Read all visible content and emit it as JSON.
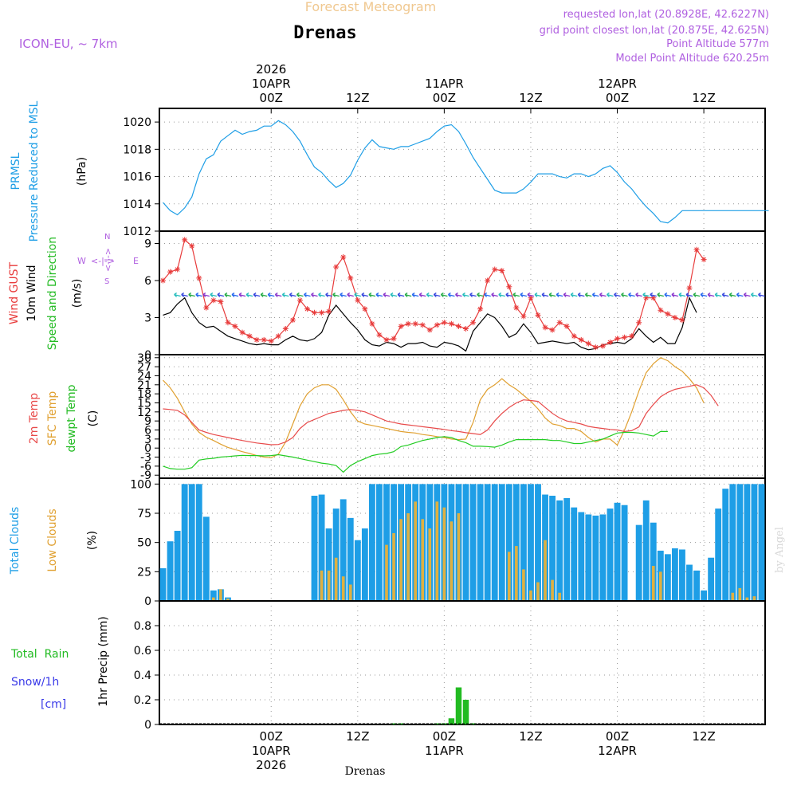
{
  "header": {
    "subtitle": "Forecast Meteogram",
    "title": "Drenas",
    "model": "ICON-EU, ~ 7km",
    "requested": "requested lon,lat (20.8928E, 42.6227N)",
    "grid_point": "grid point closest lon,lat (20.875E, 42.625N)",
    "point_altitude": "Point Altitude 577m",
    "model_altitude": "Model Point Altitude 620.25m"
  },
  "footer": {
    "location": "Drenas",
    "watermark": "by Angel"
  },
  "time_axis": {
    "top_labels": [
      {
        "i": 15,
        "lines": [
          "2026",
          "10APR",
          "00Z"
        ]
      },
      {
        "i": 27,
        "lines": [
          "12Z"
        ]
      },
      {
        "i": 39,
        "lines": [
          "11APR",
          "00Z"
        ]
      },
      {
        "i": 51,
        "lines": [
          "12Z"
        ]
      },
      {
        "i": 63,
        "lines": [
          "12APR",
          "00Z"
        ]
      },
      {
        "i": 75,
        "lines": [
          "12Z"
        ]
      }
    ],
    "bottom_labels": [
      {
        "i": 15,
        "lines": [
          "00Z",
          "10APR",
          "2026"
        ]
      },
      {
        "i": 27,
        "lines": [
          "12Z"
        ]
      },
      {
        "i": 39,
        "lines": [
          "00Z",
          "11APR"
        ]
      },
      {
        "i": 51,
        "lines": [
          "12Z"
        ]
      },
      {
        "i": 63,
        "lines": [
          "00Z",
          "12APR"
        ]
      },
      {
        "i": 75,
        "lines": [
          "12Z"
        ]
      }
    ]
  },
  "panels": {
    "pressure": {
      "label_lines": [
        "PRMSL",
        "Pressure Reduced to MSL"
      ],
      "unit": "(hPa)",
      "ticks": [
        1012,
        1014,
        1016,
        1018,
        1020
      ]
    },
    "wind": {
      "label_gust": "Wind GUST",
      "label_wind": "10m Wind",
      "label_dir": "Speed and Direction",
      "unit": "(m/s)",
      "ticks": [
        0,
        3,
        6,
        9
      ],
      "compass": {
        "w": "W",
        "e": "E",
        "n": "N",
        "s": "S",
        "arrows": "<-|->"
      }
    },
    "temp": {
      "label_t2m": "2m Temp",
      "label_sfc": "SFC Temp",
      "label_dew": "dewpt Temp",
      "unit": "(C)",
      "ticks": [
        -9,
        -6,
        -3,
        0,
        3,
        6,
        9,
        12,
        15,
        18,
        21,
        24,
        27,
        30
      ]
    },
    "clouds": {
      "label_total": "Total Clouds",
      "label_low": "Low Clouds",
      "unit": "(%)",
      "ticks": [
        0,
        25,
        50,
        75,
        100
      ]
    },
    "precip": {
      "label_rain": "Total  Rain",
      "label_snow": "Snow/1h",
      "label_snow_unit": "[cm]",
      "unit": "1hr Precip (mm)",
      "ticks": [
        "0",
        "0.2",
        "0.4",
        "0.6",
        "0.8"
      ]
    }
  },
  "colors": {
    "pressure": "#1e9ee6",
    "gust": "#e83b3b",
    "wind": "#000000",
    "t2m": "#e84a4a",
    "sfc": "#e0a030",
    "dew": "#22cc22",
    "total_clouds": "#1e9ee6",
    "low_clouds": "#e0b040",
    "rain": "#22bb22",
    "snow": "#3a3ae8",
    "title_purple": "#b060e0",
    "subtitle": "#f0c890",
    "frame": "#000000",
    "grid": "#999999"
  },
  "chart_data": {
    "type": "meteogram",
    "title": "Forecast Meteogram - Drenas",
    "time_step_hours": 1,
    "start": "2026-04-09T09Z",
    "x_index_range": [
      0,
      84
    ],
    "pressure_hpa": {
      "ylim": [
        1012,
        1021
      ],
      "x": [
        0,
        1,
        2,
        3,
        4,
        5,
        6,
        7,
        8,
        9,
        10,
        11,
        12,
        13,
        14,
        15,
        16,
        17,
        18,
        19,
        20,
        21,
        22,
        23,
        24,
        25,
        26,
        27,
        28,
        29,
        30,
        31,
        32,
        33,
        34,
        35,
        36,
        37,
        38,
        39,
        40,
        41,
        42,
        43,
        44,
        45,
        46,
        47,
        48,
        49,
        50,
        51,
        52,
        53,
        54,
        55,
        56,
        57,
        58,
        59,
        60,
        61,
        62,
        63,
        64,
        65,
        66,
        67,
        68,
        69,
        70,
        71,
        72,
        73,
        74,
        75,
        76,
        77,
        78,
        79,
        80,
        81,
        82,
        83,
        84
      ],
      "values": [
        1014.1,
        1013.5,
        1013.2,
        1013.7,
        1014.5,
        1016.2,
        1017.3,
        1017.6,
        1018.6,
        1019.0,
        1019.4,
        1019.1,
        1019.3,
        1019.4,
        1019.7,
        1019.7,
        1020.1,
        1019.8,
        1019.3,
        1018.6,
        1017.6,
        1016.7,
        1016.3,
        1015.7,
        1015.2,
        1015.5,
        1016.1,
        1017.2,
        1018.1,
        1018.7,
        1018.2,
        1018.1,
        1018.0,
        1018.2,
        1018.2,
        1018.4,
        1018.6,
        1018.8,
        1019.3,
        1019.7,
        1019.8,
        1019.3,
        1018.4,
        1017.4,
        1016.6,
        1015.8,
        1015.0,
        1014.8,
        1014.8,
        1014.8,
        1015.1,
        1015.6,
        1016.2,
        1016.2,
        1016.2,
        1016.0,
        1015.9,
        1016.2,
        1016.2,
        1016.0,
        1016.2,
        1016.6,
        1016.8,
        1016.3,
        1015.6,
        1015.1,
        1014.4,
        1013.8,
        1013.3,
        1012.7,
        1012.6,
        1013.0,
        1013.5,
        1013.5,
        1013.5,
        1013.5,
        1013.5,
        1013.5,
        1013.5,
        1013.5,
        1013.5,
        1013.5,
        1013.5,
        1013.5,
        1013.5
      ]
    },
    "wind_gust_ms": {
      "ylim": [
        0,
        10
      ],
      "values": [
        6.0,
        6.7,
        6.9,
        9.3,
        8.8,
        6.2,
        3.8,
        4.4,
        4.3,
        2.6,
        2.3,
        1.8,
        1.5,
        1.2,
        1.2,
        1.1,
        1.5,
        2.1,
        2.8,
        4.4,
        3.7,
        3.4,
        3.4,
        3.5,
        7.1,
        7.9,
        6.2,
        4.4,
        3.7,
        2.5,
        1.6,
        1.2,
        1.3,
        2.3,
        2.5,
        2.5,
        2.4,
        2.0,
        2.4,
        2.6,
        2.5,
        2.3,
        2.1,
        2.6,
        3.7,
        6.0,
        6.9,
        6.8,
        5.5,
        3.8,
        3.1,
        4.6,
        3.2,
        2.2,
        2.0,
        2.6,
        2.3,
        1.5,
        1.2,
        0.9,
        0.6,
        0.7,
        1.0,
        1.3,
        1.4,
        1.5,
        2.6,
        4.6,
        4.6,
        3.6,
        3.3,
        3.0,
        2.8,
        5.4,
        8.5,
        7.7
      ]
    },
    "wind_speed_ms": {
      "values": [
        3.2,
        3.4,
        4.1,
        4.6,
        3.4,
        2.6,
        2.2,
        2.3,
        1.9,
        1.5,
        1.3,
        1.1,
        0.9,
        0.8,
        0.9,
        0.8,
        0.8,
        1.2,
        1.5,
        1.2,
        1.1,
        1.3,
        1.8,
        3.2,
        4.0,
        3.3,
        2.6,
        2.0,
        1.2,
        0.8,
        0.7,
        1.0,
        0.9,
        0.6,
        0.9,
        0.9,
        1.0,
        0.7,
        0.6,
        1.0,
        0.9,
        0.7,
        0.3,
        1.9,
        2.6,
        3.3,
        3.0,
        2.3,
        1.4,
        1.7,
        2.5,
        1.8,
        0.9,
        1.0,
        1.1,
        1.0,
        0.9,
        1.0,
        0.6,
        0.4,
        0.5,
        0.8,
        0.9,
        1.0,
        0.9,
        1.3,
        2.1,
        1.5,
        1.0,
        1.4,
        0.9,
        0.9,
        2.2,
        4.6,
        3.4
      ]
    },
    "temp_2m_c": {
      "ylim": [
        -10,
        31
      ],
      "values": [
        13.0,
        12.8,
        12.5,
        11.0,
        8.5,
        6.0,
        5.2,
        4.5,
        4.0,
        3.5,
        3.0,
        2.5,
        2.1,
        1.7,
        1.4,
        1.1,
        1.2,
        2.0,
        3.5,
        6.5,
        8.5,
        9.5,
        10.5,
        11.5,
        12.0,
        12.5,
        12.8,
        12.5,
        12.0,
        11.0,
        10.0,
        9.0,
        8.5,
        8.0,
        7.7,
        7.4,
        7.1,
        6.8,
        6.5,
        6.2,
        5.8,
        5.5,
        5.1,
        4.8,
        4.5,
        6.0,
        9.0,
        11.5,
        13.5,
        15.0,
        16.0,
        15.8,
        15.5,
        13.5,
        11.5,
        10.0,
        9.0,
        8.5,
        8.0,
        7.2,
        6.8,
        6.5,
        6.2,
        6.0,
        5.5,
        5.8,
        7.0,
        11.5,
        14.5,
        17.0,
        18.5,
        19.5,
        20.0,
        20.5,
        21.0,
        20.0,
        17.5,
        14.0
      ]
    },
    "temp_sfc_c": {
      "values": [
        22.5,
        20.0,
        16.5,
        12.0,
        8.0,
        5.2,
        3.6,
        2.5,
        1.3,
        0.2,
        -0.5,
        -1.2,
        -1.8,
        -2.5,
        -3.0,
        -3.2,
        -2.0,
        2.0,
        8.0,
        14.0,
        18.0,
        20.0,
        21.0,
        21.0,
        19.5,
        16.0,
        12.0,
        9.0,
        8.0,
        7.5,
        7.0,
        6.5,
        6.0,
        5.5,
        5.2,
        5.0,
        4.5,
        4.2,
        3.8,
        3.5,
        3.0,
        2.8,
        3.0,
        8.5,
        16.0,
        19.5,
        21.0,
        23.0,
        21.0,
        19.5,
        17.5,
        15.5,
        13.0,
        10.0,
        8.0,
        7.5,
        6.5,
        6.5,
        5.5,
        3.5,
        2.0,
        3.0,
        3.0,
        1.0,
        6.0,
        12.0,
        19.0,
        25.0,
        28.0,
        30.0,
        29.0,
        27.0,
        25.5,
        23.0,
        20.0,
        15.0
      ]
    },
    "temp_dew_c": {
      "values": [
        -6.0,
        -6.8,
        -7.0,
        -7.0,
        -6.5,
        -4.0,
        -3.6,
        -3.4,
        -3.0,
        -2.8,
        -2.6,
        -2.4,
        -2.5,
        -2.5,
        -2.6,
        -2.5,
        -2.2,
        -2.6,
        -3.0,
        -3.5,
        -4.0,
        -4.5,
        -5.0,
        -5.3,
        -5.8,
        -8.0,
        -5.8,
        -4.5,
        -3.5,
        -2.5,
        -2.0,
        -1.8,
        -1.2,
        0.5,
        1.0,
        1.8,
        2.5,
        3.0,
        3.5,
        3.8,
        3.5,
        2.5,
        1.8,
        0.6,
        0.6,
        0.5,
        0.3,
        1.0,
        2.0,
        2.8,
        2.8,
        2.8,
        2.8,
        2.8,
        2.5,
        2.5,
        2.0,
        1.5,
        1.5,
        2.0,
        2.5,
        3.0,
        4.0,
        5.0,
        5.2,
        5.2,
        5.0,
        4.5,
        4.0,
        5.5,
        5.5
      ]
    },
    "total_clouds_pct": {
      "ylim": [
        0,
        105
      ],
      "values": [
        28,
        51,
        60,
        100,
        100,
        100,
        72,
        9,
        10,
        3,
        0,
        0,
        0,
        0,
        0,
        0,
        0,
        0,
        0,
        0,
        0,
        90,
        91,
        62,
        79,
        87,
        71,
        52,
        62,
        100,
        100,
        100,
        100,
        100,
        100,
        100,
        100,
        100,
        100,
        100,
        100,
        100,
        100,
        100,
        100,
        100,
        100,
        100,
        100,
        100,
        100,
        100,
        100,
        91,
        90,
        86,
        88,
        80,
        76,
        74,
        73,
        74,
        79,
        84,
        82,
        0,
        65,
        86,
        67,
        43,
        40,
        45,
        44,
        31,
        26,
        9,
        37,
        79,
        96,
        100,
        100,
        100,
        100,
        100
      ]
    },
    "low_clouds_pct": {
      "values": [
        0,
        0,
        0,
        0,
        0,
        0,
        0,
        3,
        10,
        2,
        0,
        0,
        0,
        0,
        0,
        0,
        0,
        0,
        0,
        0,
        0,
        0,
        26,
        26,
        37,
        21,
        14,
        0,
        0,
        0,
        0,
        48,
        58,
        70,
        75,
        85,
        70,
        62,
        85,
        80,
        68,
        75,
        0,
        0,
        0,
        0,
        0,
        0,
        42,
        47,
        27,
        9,
        16,
        52,
        18,
        7,
        0,
        0,
        0,
        0,
        0,
        0,
        0,
        0,
        0,
        0,
        0,
        0,
        30,
        25,
        0,
        0,
        0,
        0,
        0,
        0,
        0,
        0,
        0,
        7,
        11,
        3,
        4,
        0
      ]
    },
    "precip_rain_mm": {
      "ylim": [
        0,
        1.0
      ],
      "values": [
        0,
        0,
        0,
        0,
        0,
        0,
        0,
        0,
        0,
        0,
        0,
        0,
        0,
        0,
        0,
        0,
        0,
        0,
        0,
        0,
        0,
        0,
        0,
        0,
        0,
        0,
        0,
        0,
        0,
        0,
        0,
        0,
        0.005,
        0.005,
        0,
        0,
        0,
        0,
        0.005,
        0.01,
        0.05,
        0.3,
        0.2,
        0.01,
        0,
        0,
        0,
        0,
        0,
        0,
        0,
        0,
        0,
        0,
        0,
        0,
        0,
        0,
        0,
        0,
        0,
        0,
        0,
        0,
        0,
        0,
        0,
        0,
        0,
        0,
        0,
        0,
        0,
        0,
        0,
        0
      ]
    }
  }
}
